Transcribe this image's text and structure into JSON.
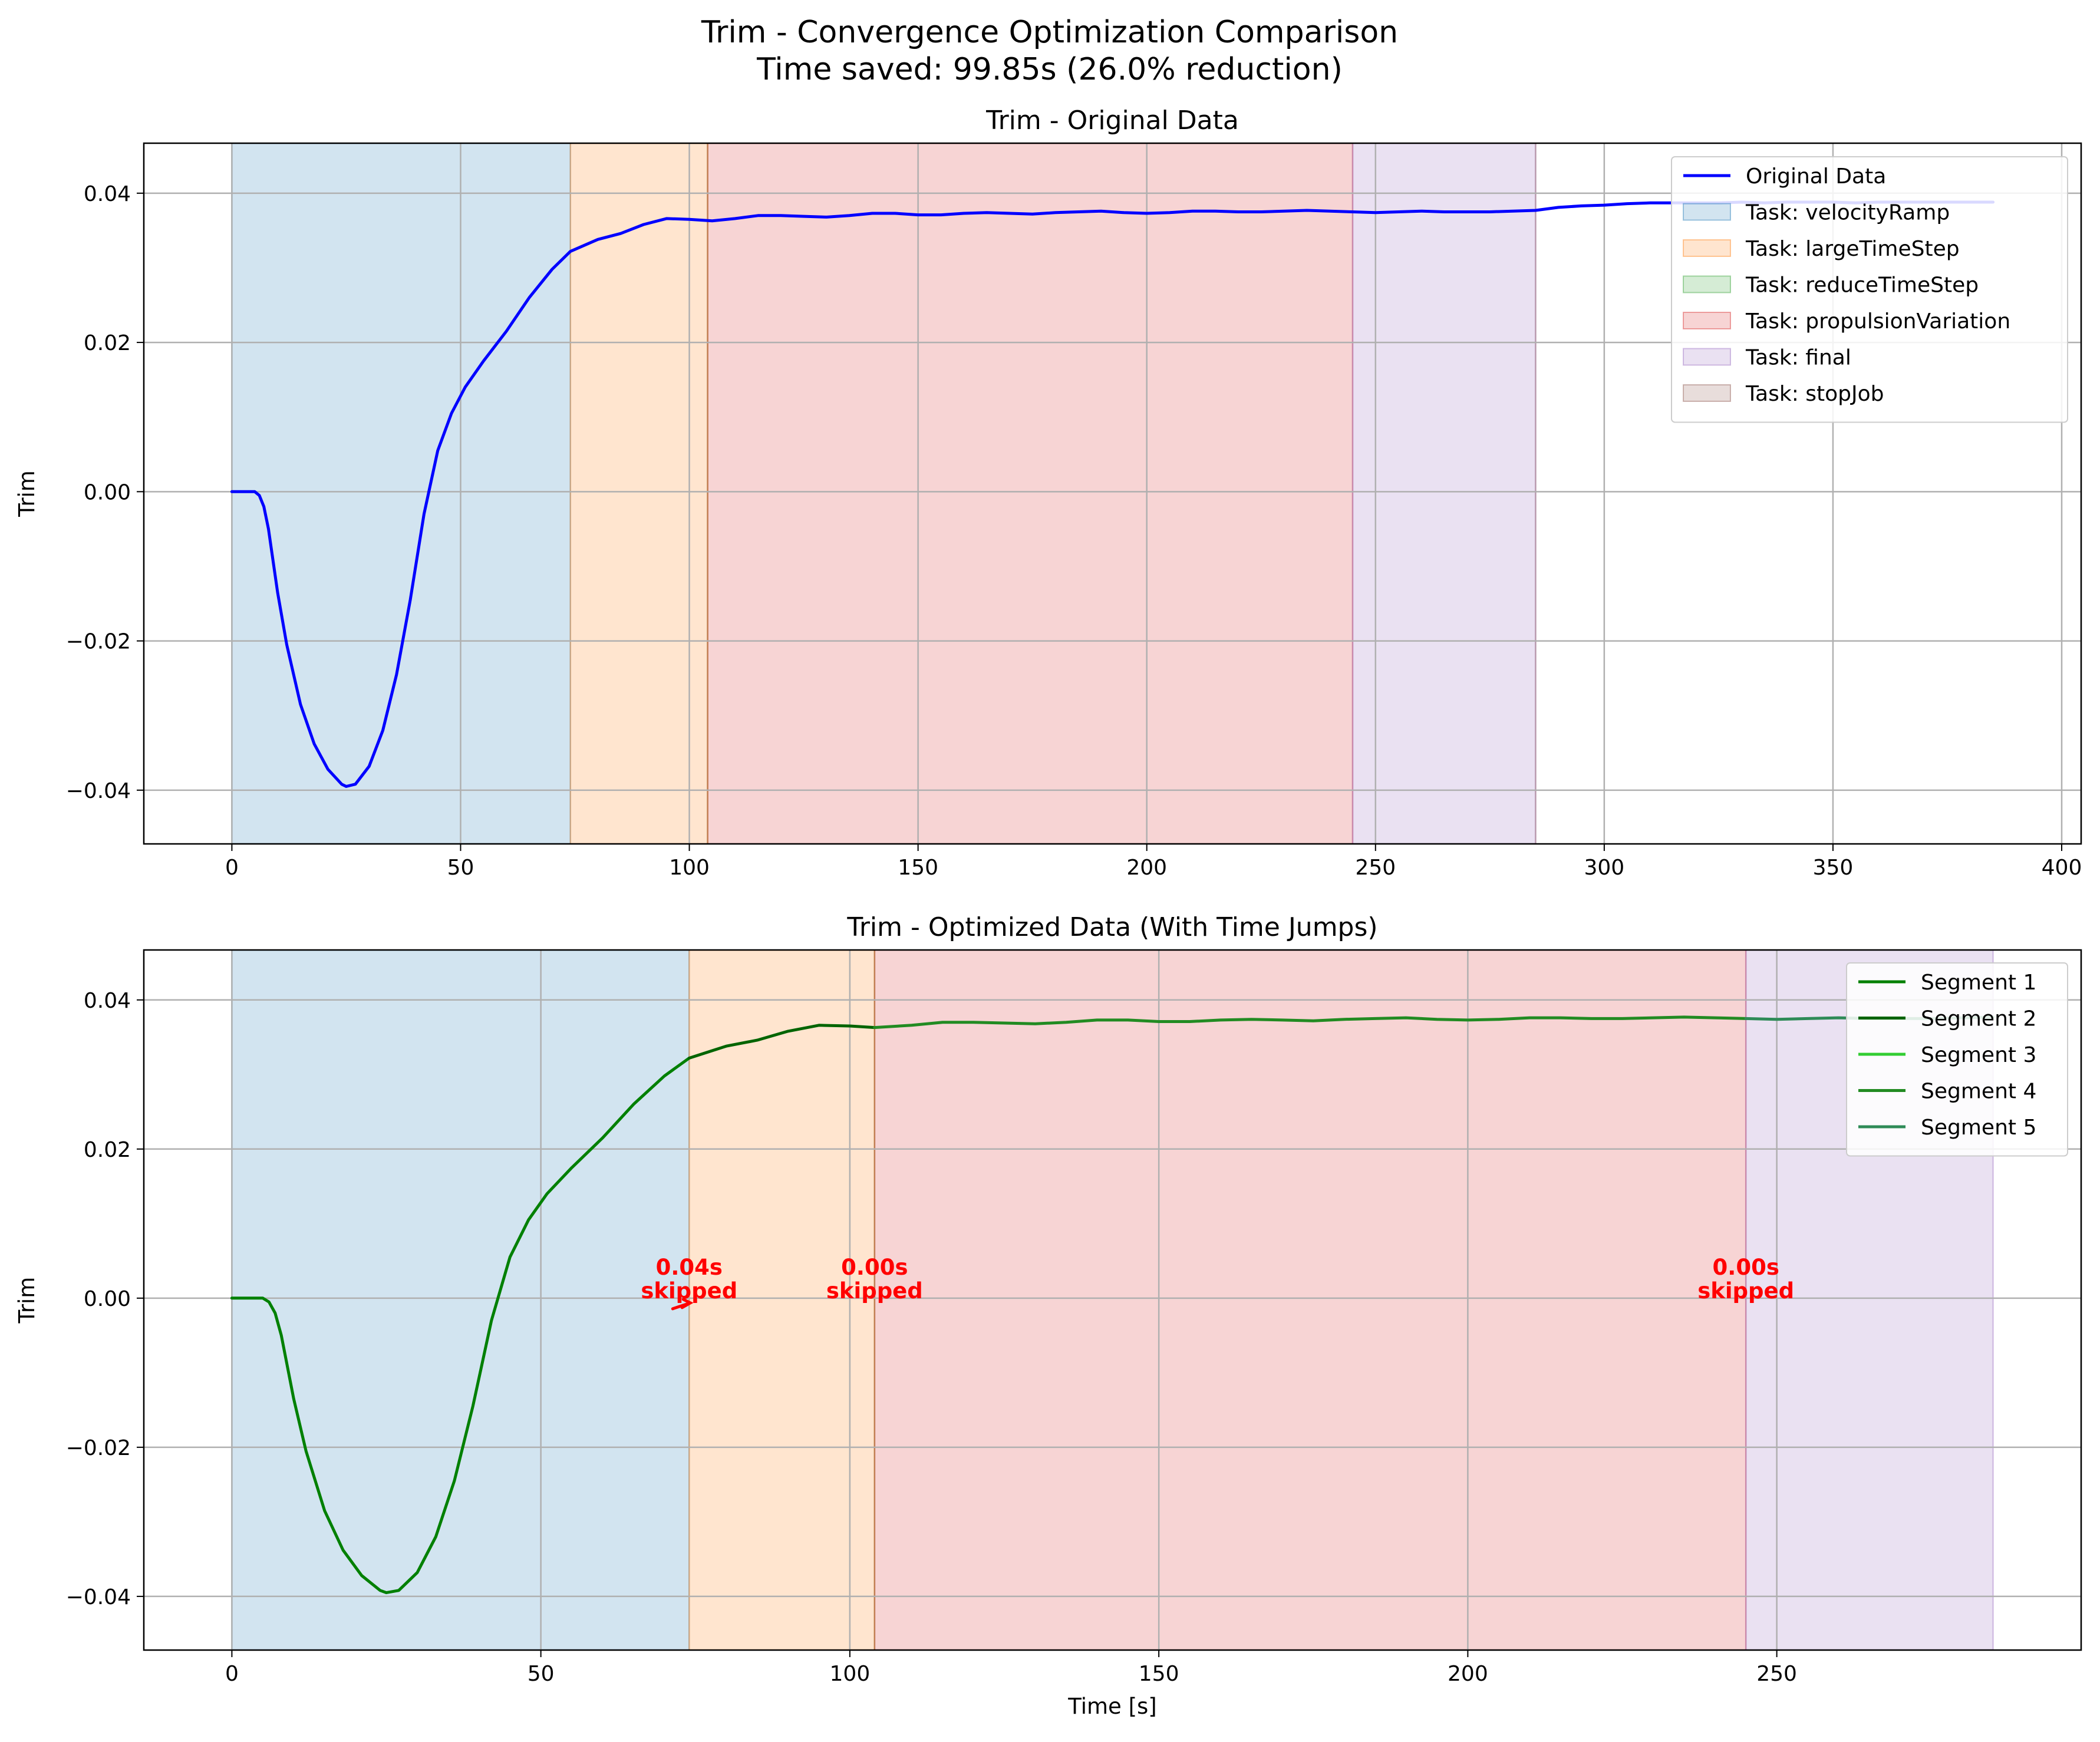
{
  "figure": {
    "title_line1": "Trim - Convergence Optimization Comparison",
    "title_line2": "Time saved: 99.85s (26.0% reduction)"
  },
  "chart_data": [
    {
      "type": "line",
      "title": "Trim - Original Data",
      "xlabel": "",
      "ylabel": "Trim",
      "xlim": [
        -19.25,
        404.25
      ],
      "ylim": [
        -0.0472,
        0.0467
      ],
      "xticks": [
        0,
        50,
        100,
        150,
        200,
        250,
        300,
        350,
        400
      ],
      "xtick_labels": [
        "0",
        "50",
        "100",
        "150",
        "200",
        "250",
        "300",
        "350",
        "400"
      ],
      "yticks": [
        -0.04,
        -0.02,
        0.0,
        0.02,
        0.04
      ],
      "ytick_labels": [
        "−0.04",
        "−0.02",
        "0.00",
        "0.02",
        "0.04"
      ],
      "grid": true,
      "legend_position": "top-right",
      "task_regions": [
        {
          "name": "Task: velocityRamp",
          "start": 0,
          "end": 74,
          "color": "#1f77b4"
        },
        {
          "name": "Task: largeTimeStep",
          "start": 74,
          "end": 104,
          "color": "#ff7f0e"
        },
        {
          "name": "Task: reduceTimeStep",
          "start": 104,
          "end": 104,
          "color": "#2ca02c"
        },
        {
          "name": "Task: propulsionVariation",
          "start": 104,
          "end": 245,
          "color": "#d62728"
        },
        {
          "name": "Task: final",
          "start": 245,
          "end": 285,
          "color": "#9467bd"
        },
        {
          "name": "Task: stopJob",
          "start": 285,
          "end": 285,
          "color": "#8c564b"
        }
      ],
      "series": [
        {
          "name": "Original Data",
          "color": "#0000ff",
          "x": [
            0,
            3,
            5,
            6,
            7,
            8,
            10,
            12,
            15,
            18,
            21,
            24,
            25,
            27,
            30,
            33,
            36,
            39,
            42,
            45,
            48,
            51,
            55,
            60,
            65,
            70,
            74,
            80,
            85,
            90,
            95,
            100,
            105,
            110,
            115,
            120,
            125,
            130,
            135,
            140,
            145,
            150,
            155,
            160,
            165,
            170,
            175,
            180,
            185,
            190,
            195,
            200,
            205,
            210,
            215,
            220,
            225,
            230,
            235,
            240,
            245,
            250,
            255,
            260,
            265,
            270,
            275,
            280,
            285,
            290,
            295,
            300,
            305,
            310,
            315,
            320,
            325,
            330,
            335,
            340,
            345,
            350,
            355,
            360,
            365,
            370,
            375,
            380,
            385
          ],
          "y": [
            0.0,
            0.0,
            0.0,
            -0.0005,
            -0.002,
            -0.005,
            -0.0135,
            -0.0205,
            -0.0285,
            -0.0338,
            -0.0372,
            -0.0392,
            -0.0395,
            -0.0392,
            -0.0368,
            -0.032,
            -0.0245,
            -0.0145,
            -0.003,
            0.0055,
            0.0105,
            0.014,
            0.0175,
            0.0215,
            0.026,
            0.0298,
            0.0322,
            0.0338,
            0.0346,
            0.0358,
            0.0366,
            0.0365,
            0.0363,
            0.0366,
            0.037,
            0.037,
            0.0369,
            0.0368,
            0.037,
            0.0373,
            0.0373,
            0.0371,
            0.0371,
            0.0373,
            0.0374,
            0.0373,
            0.0372,
            0.0374,
            0.0375,
            0.0376,
            0.0374,
            0.0373,
            0.0374,
            0.0376,
            0.0376,
            0.0375,
            0.0375,
            0.0376,
            0.0377,
            0.0376,
            0.0375,
            0.0374,
            0.0375,
            0.0376,
            0.0375,
            0.0375,
            0.0375,
            0.0376,
            0.0377,
            0.0381,
            0.0383,
            0.0384,
            0.0386,
            0.0387,
            0.0387,
            0.0387,
            0.0387,
            0.0388,
            0.0387,
            0.0388,
            0.0388,
            0.0388,
            0.0387,
            0.0388,
            0.0388,
            0.0388,
            0.0388,
            0.0388,
            0.0388
          ]
        }
      ],
      "legend": [
        {
          "label": "Original Data",
          "kind": "line",
          "color": "#0000ff"
        },
        {
          "label": "Task: velocityRamp",
          "kind": "patch",
          "color": "#1f77b4"
        },
        {
          "label": "Task: largeTimeStep",
          "kind": "patch",
          "color": "#ff7f0e"
        },
        {
          "label": "Task: reduceTimeStep",
          "kind": "patch",
          "color": "#2ca02c"
        },
        {
          "label": "Task: propulsionVariation",
          "kind": "patch",
          "color": "#d62728"
        },
        {
          "label": "Task: final",
          "kind": "patch",
          "color": "#9467bd"
        },
        {
          "label": "Task: stopJob",
          "kind": "patch",
          "color": "#8c564b"
        }
      ]
    },
    {
      "type": "line",
      "title": "Trim - Optimized Data (With Time Jumps)",
      "xlabel": "Time [s]",
      "ylabel": "Trim",
      "xlim": [
        -14.25,
        299.25
      ],
      "ylim": [
        -0.0472,
        0.0467
      ],
      "xticks": [
        0,
        50,
        100,
        150,
        200,
        250
      ],
      "xtick_labels": [
        "0",
        "50",
        "100",
        "150",
        "200",
        "250"
      ],
      "yticks": [
        -0.04,
        -0.02,
        0.0,
        0.02,
        0.04
      ],
      "ytick_labels": [
        "−0.04",
        "−0.02",
        "0.00",
        "0.02",
        "0.04"
      ],
      "grid": true,
      "legend_position": "top-right",
      "task_regions": [
        {
          "name": "Task: velocityRamp",
          "start": 0,
          "end": 74,
          "color": "#1f77b4"
        },
        {
          "name": "Task: largeTimeStep",
          "start": 74,
          "end": 104,
          "color": "#ff7f0e"
        },
        {
          "name": "Task: reduceTimeStep",
          "start": 104,
          "end": 104,
          "color": "#2ca02c"
        },
        {
          "name": "Task: propulsionVariation",
          "start": 104,
          "end": 245,
          "color": "#d62728"
        },
        {
          "name": "Task: final",
          "start": 245,
          "end": 285,
          "color": "#9467bd"
        }
      ],
      "series": [
        {
          "name": "Segment 1",
          "color": "#008000",
          "x": [
            0,
            3,
            5,
            6,
            7,
            8,
            10,
            12,
            15,
            18,
            21,
            24,
            25,
            27,
            30,
            33,
            36,
            39,
            42,
            45,
            48,
            51,
            55,
            60,
            65,
            70,
            74
          ],
          "y": [
            0.0,
            0.0,
            0.0,
            -0.0005,
            -0.002,
            -0.005,
            -0.0135,
            -0.0205,
            -0.0285,
            -0.0338,
            -0.0372,
            -0.0392,
            -0.0395,
            -0.0392,
            -0.0368,
            -0.032,
            -0.0245,
            -0.0145,
            -0.003,
            0.0055,
            0.0105,
            0.014,
            0.0175,
            0.0215,
            0.026,
            0.0298,
            0.0322
          ]
        },
        {
          "name": "Segment 2",
          "color": "#006400",
          "x": [
            74,
            80,
            85,
            90,
            95,
            100,
            104
          ],
          "y": [
            0.0322,
            0.0338,
            0.0346,
            0.0358,
            0.0366,
            0.0365,
            0.0363
          ]
        },
        {
          "name": "Segment 3",
          "color": "#32cd32",
          "x": [
            104,
            104.1
          ],
          "y": [
            0.0363,
            0.0363
          ]
        },
        {
          "name": "Segment 4",
          "color": "#228b22",
          "x": [
            104,
            110,
            115,
            120,
            125,
            130,
            135,
            140,
            145,
            150,
            155,
            160,
            165,
            170,
            175,
            180,
            185,
            190,
            195,
            200,
            205,
            210,
            215,
            220,
            225,
            230,
            235,
            240,
            245
          ],
          "y": [
            0.0363,
            0.0366,
            0.037,
            0.037,
            0.0369,
            0.0368,
            0.037,
            0.0373,
            0.0373,
            0.0371,
            0.0371,
            0.0373,
            0.0374,
            0.0373,
            0.0372,
            0.0374,
            0.0375,
            0.0376,
            0.0374,
            0.0373,
            0.0374,
            0.0376,
            0.0376,
            0.0375,
            0.0375,
            0.0376,
            0.0377,
            0.0376,
            0.0375
          ]
        },
        {
          "name": "Segment 5",
          "color": "#2e8b57",
          "x": [
            245,
            250,
            255,
            260,
            265,
            270,
            275,
            280,
            285
          ],
          "y": [
            0.0375,
            0.0374,
            0.0375,
            0.0376,
            0.0375,
            0.0375,
            0.0375,
            0.0376,
            0.0377
          ]
        }
      ],
      "annotations": [
        {
          "x": 74,
          "y": 0.0,
          "line1": "0.04s",
          "line2": "skipped",
          "arrow": true
        },
        {
          "x": 104,
          "y": 0.0,
          "line1": "0.00s",
          "line2": "skipped",
          "arrow": false
        },
        {
          "x": 245,
          "y": 0.0,
          "line1": "0.00s",
          "line2": "skipped",
          "arrow": false
        }
      ],
      "legend": [
        {
          "label": "Segment 1",
          "kind": "line",
          "color": "#008000"
        },
        {
          "label": "Segment 2",
          "kind": "line",
          "color": "#006400"
        },
        {
          "label": "Segment 3",
          "kind": "line",
          "color": "#32cd32"
        },
        {
          "label": "Segment 4",
          "kind": "line",
          "color": "#228b22"
        },
        {
          "label": "Segment 5",
          "kind": "line",
          "color": "#2e8b57"
        }
      ]
    }
  ]
}
